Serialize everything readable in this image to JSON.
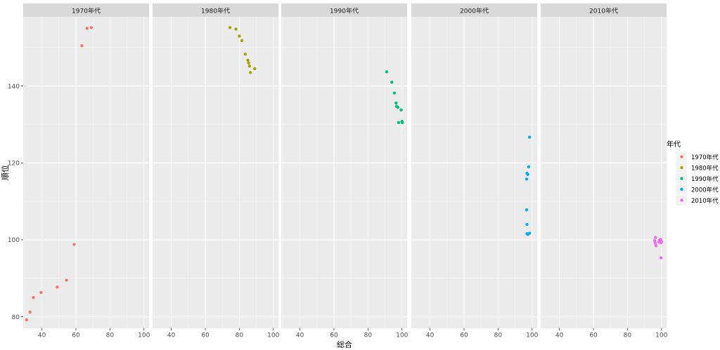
{
  "chart_data": {
    "type": "scatter",
    "xlabel": "総合",
    "ylabel": "順位",
    "x_ticks": [
      40,
      60,
      80,
      100
    ],
    "y_ticks": [
      80,
      100,
      120,
      140
    ],
    "xlim": [
      29,
      103
    ],
    "ylim": [
      77,
      158
    ],
    "grid": true,
    "legend": {
      "title": "年代",
      "position": "right"
    },
    "panels": [
      {
        "name": "1970年代",
        "color": "#F8766D",
        "points": [
          {
            "x": 31,
            "y": 79.2
          },
          {
            "x": 33,
            "y": 81.2
          },
          {
            "x": 35,
            "y": 85.0
          },
          {
            "x": 39.5,
            "y": 86.3
          },
          {
            "x": 49,
            "y": 87.7
          },
          {
            "x": 54.5,
            "y": 89.5
          },
          {
            "x": 59,
            "y": 98.8
          },
          {
            "x": 63.5,
            "y": 150.5
          },
          {
            "x": 66.5,
            "y": 155.0
          },
          {
            "x": 69,
            "y": 155.2
          }
        ]
      },
      {
        "name": "1980年代",
        "color": "#A3A500",
        "points": [
          {
            "x": 74.5,
            "y": 155.2
          },
          {
            "x": 78,
            "y": 154.8
          },
          {
            "x": 80,
            "y": 153.0
          },
          {
            "x": 81.5,
            "y": 151.8
          },
          {
            "x": 83.5,
            "y": 148.3
          },
          {
            "x": 85,
            "y": 146.7
          },
          {
            "x": 85.5,
            "y": 146.0
          },
          {
            "x": 86,
            "y": 145.2
          },
          {
            "x": 86.5,
            "y": 143.5
          },
          {
            "x": 89,
            "y": 144.5
          }
        ]
      },
      {
        "name": "1990年代",
        "color": "#00BF7D",
        "points": [
          {
            "x": 91,
            "y": 143.7
          },
          {
            "x": 94,
            "y": 141.0
          },
          {
            "x": 95.5,
            "y": 138.2
          },
          {
            "x": 96.5,
            "y": 135.6
          },
          {
            "x": 96.8,
            "y": 134.7
          },
          {
            "x": 97.5,
            "y": 134.5
          },
          {
            "x": 98,
            "y": 130.5
          },
          {
            "x": 99.5,
            "y": 133.8
          },
          {
            "x": 100,
            "y": 130.8
          },
          {
            "x": 100.2,
            "y": 130.5
          }
        ]
      },
      {
        "name": "2000年代",
        "color": "#00B0F6",
        "points": [
          {
            "x": 98.5,
            "y": 126.7
          },
          {
            "x": 98,
            "y": 119.0
          },
          {
            "x": 97,
            "y": 117.3
          },
          {
            "x": 97.5,
            "y": 117.0
          },
          {
            "x": 96.8,
            "y": 115.8
          },
          {
            "x": 96.8,
            "y": 107.8
          },
          {
            "x": 97,
            "y": 104.0
          },
          {
            "x": 97,
            "y": 101.6
          },
          {
            "x": 97.5,
            "y": 101.4
          },
          {
            "x": 98.5,
            "y": 101.7
          }
        ]
      },
      {
        "name": "2010年代",
        "color": "#E76BF3",
        "points": [
          {
            "x": 96.5,
            "y": 100.6
          },
          {
            "x": 96,
            "y": 99.8
          },
          {
            "x": 96.3,
            "y": 99.2
          },
          {
            "x": 96.8,
            "y": 98.5
          },
          {
            "x": 98.5,
            "y": 99.5
          },
          {
            "x": 99,
            "y": 100.0
          },
          {
            "x": 99.5,
            "y": 100.1
          },
          {
            "x": 99.8,
            "y": 99.2
          },
          {
            "x": 100,
            "y": 99.6
          },
          {
            "x": 99.7,
            "y": 95.3
          }
        ]
      }
    ]
  }
}
